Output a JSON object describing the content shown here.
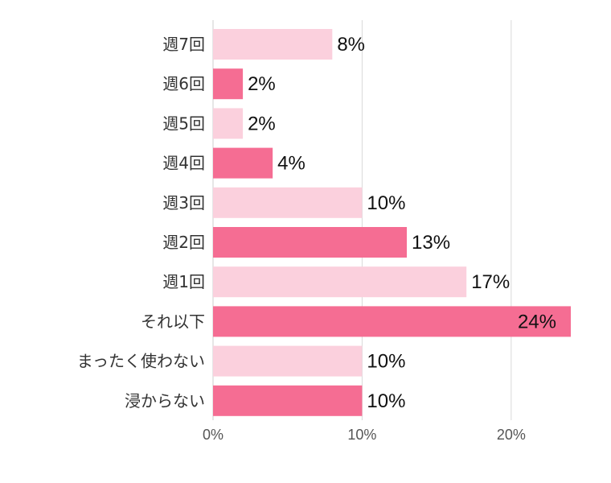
{
  "chart_data": {
    "type": "bar",
    "orientation": "horizontal",
    "categories": [
      "週7回",
      "週6回",
      "週5回",
      "週4回",
      "週3回",
      "週2回",
      "週1回",
      "それ以下",
      "まったく使わない",
      "浸からない"
    ],
    "values": [
      8,
      2,
      2,
      4,
      10,
      13,
      17,
      24,
      10,
      10
    ],
    "value_labels": [
      "8%",
      "2%",
      "2%",
      "4%",
      "10%",
      "13%",
      "17%",
      "24%",
      "10%",
      "10%"
    ],
    "bar_colors": [
      "#fbd0dd",
      "#f56d93",
      "#fbd0dd",
      "#f56d93",
      "#fbd0dd",
      "#f56d93",
      "#fbd0dd",
      "#f56d93",
      "#fbd0dd",
      "#f56d93"
    ],
    "x_ticks": [
      0,
      10,
      20
    ],
    "x_tick_labels": [
      "0%",
      "10%",
      "20%"
    ],
    "xlim": [
      0,
      24
    ],
    "grid": true,
    "title": "",
    "xlabel": "",
    "ylabel": ""
  }
}
